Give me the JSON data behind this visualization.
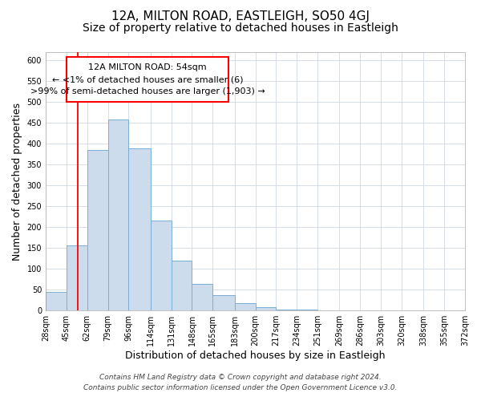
{
  "title": "12A, MILTON ROAD, EASTLEIGH, SO50 4GJ",
  "subtitle": "Size of property relative to detached houses in Eastleigh",
  "xlabel": "Distribution of detached houses by size in Eastleigh",
  "ylabel": "Number of detached properties",
  "bin_edges": [
    28,
    45,
    62,
    79,
    96,
    114,
    131,
    148,
    165,
    183,
    200,
    217,
    234,
    251,
    269,
    286,
    303,
    320,
    338,
    355,
    372
  ],
  "bar_heights": [
    45,
    157,
    385,
    458,
    390,
    215,
    120,
    63,
    37,
    18,
    8,
    3,
    2,
    1,
    1,
    1,
    0,
    0,
    0,
    0
  ],
  "bar_color": "#ccdcec",
  "bar_edge_color": "#7aaed4",
  "bar_edge_width": 0.7,
  "redline_x": 54,
  "ylim": [
    0,
    620
  ],
  "yticks": [
    0,
    50,
    100,
    150,
    200,
    250,
    300,
    350,
    400,
    450,
    500,
    550,
    600
  ],
  "xtick_labels": [
    "28sqm",
    "45sqm",
    "62sqm",
    "79sqm",
    "96sqm",
    "114sqm",
    "131sqm",
    "148sqm",
    "165sqm",
    "183sqm",
    "200sqm",
    "217sqm",
    "234sqm",
    "251sqm",
    "269sqm",
    "286sqm",
    "303sqm",
    "320sqm",
    "338sqm",
    "355sqm",
    "372sqm"
  ],
  "annotation_line1": "12A MILTON ROAD: 54sqm",
  "annotation_line2": "← <1% of detached houses are smaller (6)",
  "annotation_line3": ">99% of semi-detached houses are larger (1,903) →",
  "grid_color": "#d0d8e4",
  "background_color": "#ffffff",
  "footer_line1": "Contains HM Land Registry data © Crown copyright and database right 2024.",
  "footer_line2": "Contains public sector information licensed under the Open Government Licence v3.0.",
  "title_fontsize": 11,
  "subtitle_fontsize": 10,
  "axis_label_fontsize": 9,
  "tick_fontsize": 7,
  "annotation_fontsize": 8,
  "footer_fontsize": 6.5
}
